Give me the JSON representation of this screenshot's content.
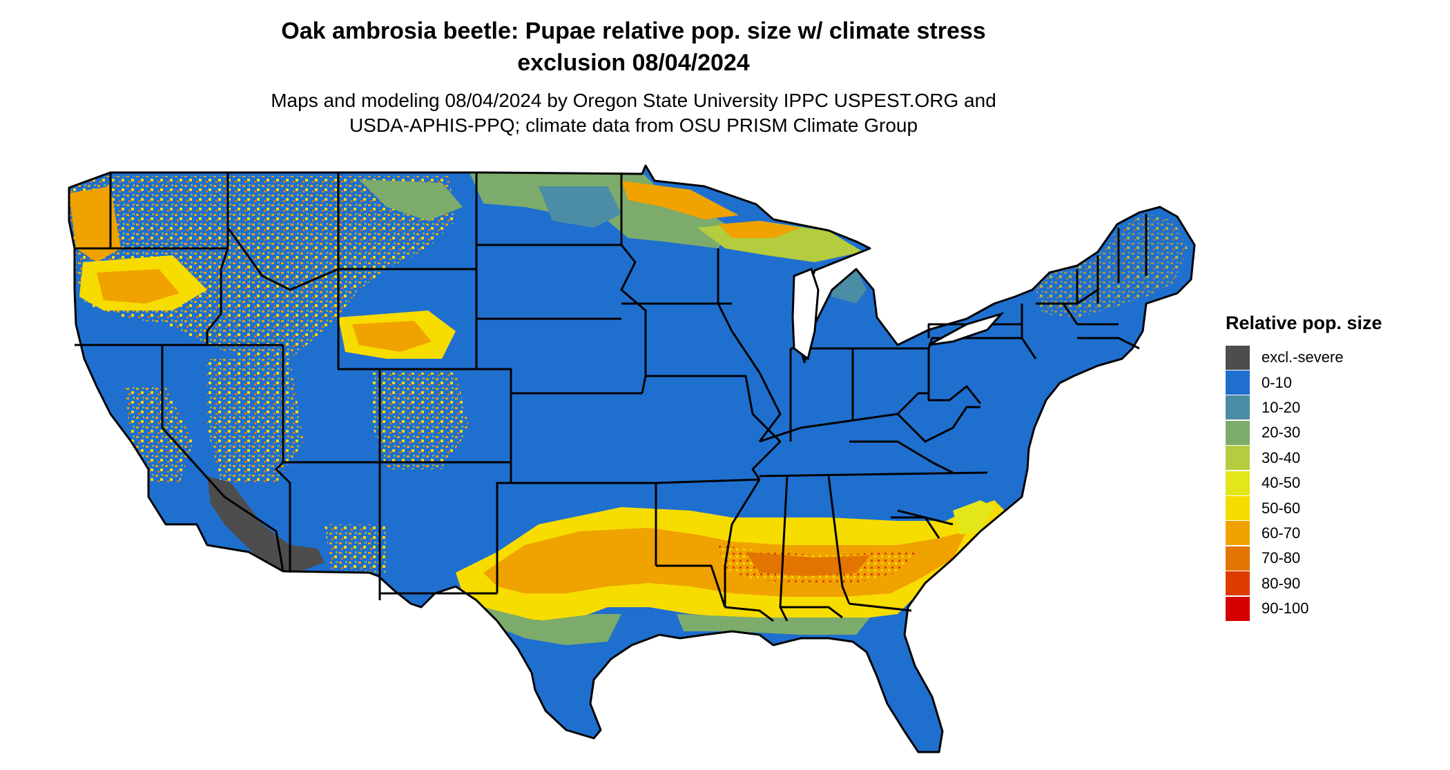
{
  "map": {
    "title_line1": "Oak ambrosia beetle: Pupae relative pop. size w/ climate stress",
    "title_line2": "exclusion 08/04/2024",
    "subtitle_line1": "Maps and modeling 08/04/2024 by Oregon State University IPPC USPEST.ORG and",
    "subtitle_line2": "USDA-APHIS-PPQ; climate data from OSU PRISM Climate Group",
    "region": "contiguous-united-states",
    "background_class": "0-10",
    "hotspots": [
      {
        "name": "southern-belt",
        "class": "60-70"
      },
      {
        "name": "texas-oklahoma-belt",
        "class": "60-70"
      },
      {
        "name": "upper-midwest-lakes",
        "class": "20-30"
      },
      {
        "name": "northern-rockies",
        "class": "50-60"
      },
      {
        "name": "pacific-northwest",
        "class": "60-70"
      },
      {
        "name": "southwest-desert",
        "class": "excl.-severe"
      }
    ]
  },
  "legend": {
    "title": "Relative pop. size",
    "items": [
      {
        "label": "excl.-severe",
        "color": "#4d4d4d"
      },
      {
        "label": "0-10",
        "color": "#1f6fcf"
      },
      {
        "label": "10-20",
        "color": "#4b8da4"
      },
      {
        "label": "20-30",
        "color": "#7dab6b"
      },
      {
        "label": "30-40",
        "color": "#b4cc3d"
      },
      {
        "label": "40-50",
        "color": "#e3e619"
      },
      {
        "label": "50-60",
        "color": "#f7dc00"
      },
      {
        "label": "60-70",
        "color": "#efa200"
      },
      {
        "label": "70-80",
        "color": "#e27500"
      },
      {
        "label": "80-90",
        "color": "#dd3d00"
      },
      {
        "label": "90-100",
        "color": "#d70000"
      }
    ]
  }
}
